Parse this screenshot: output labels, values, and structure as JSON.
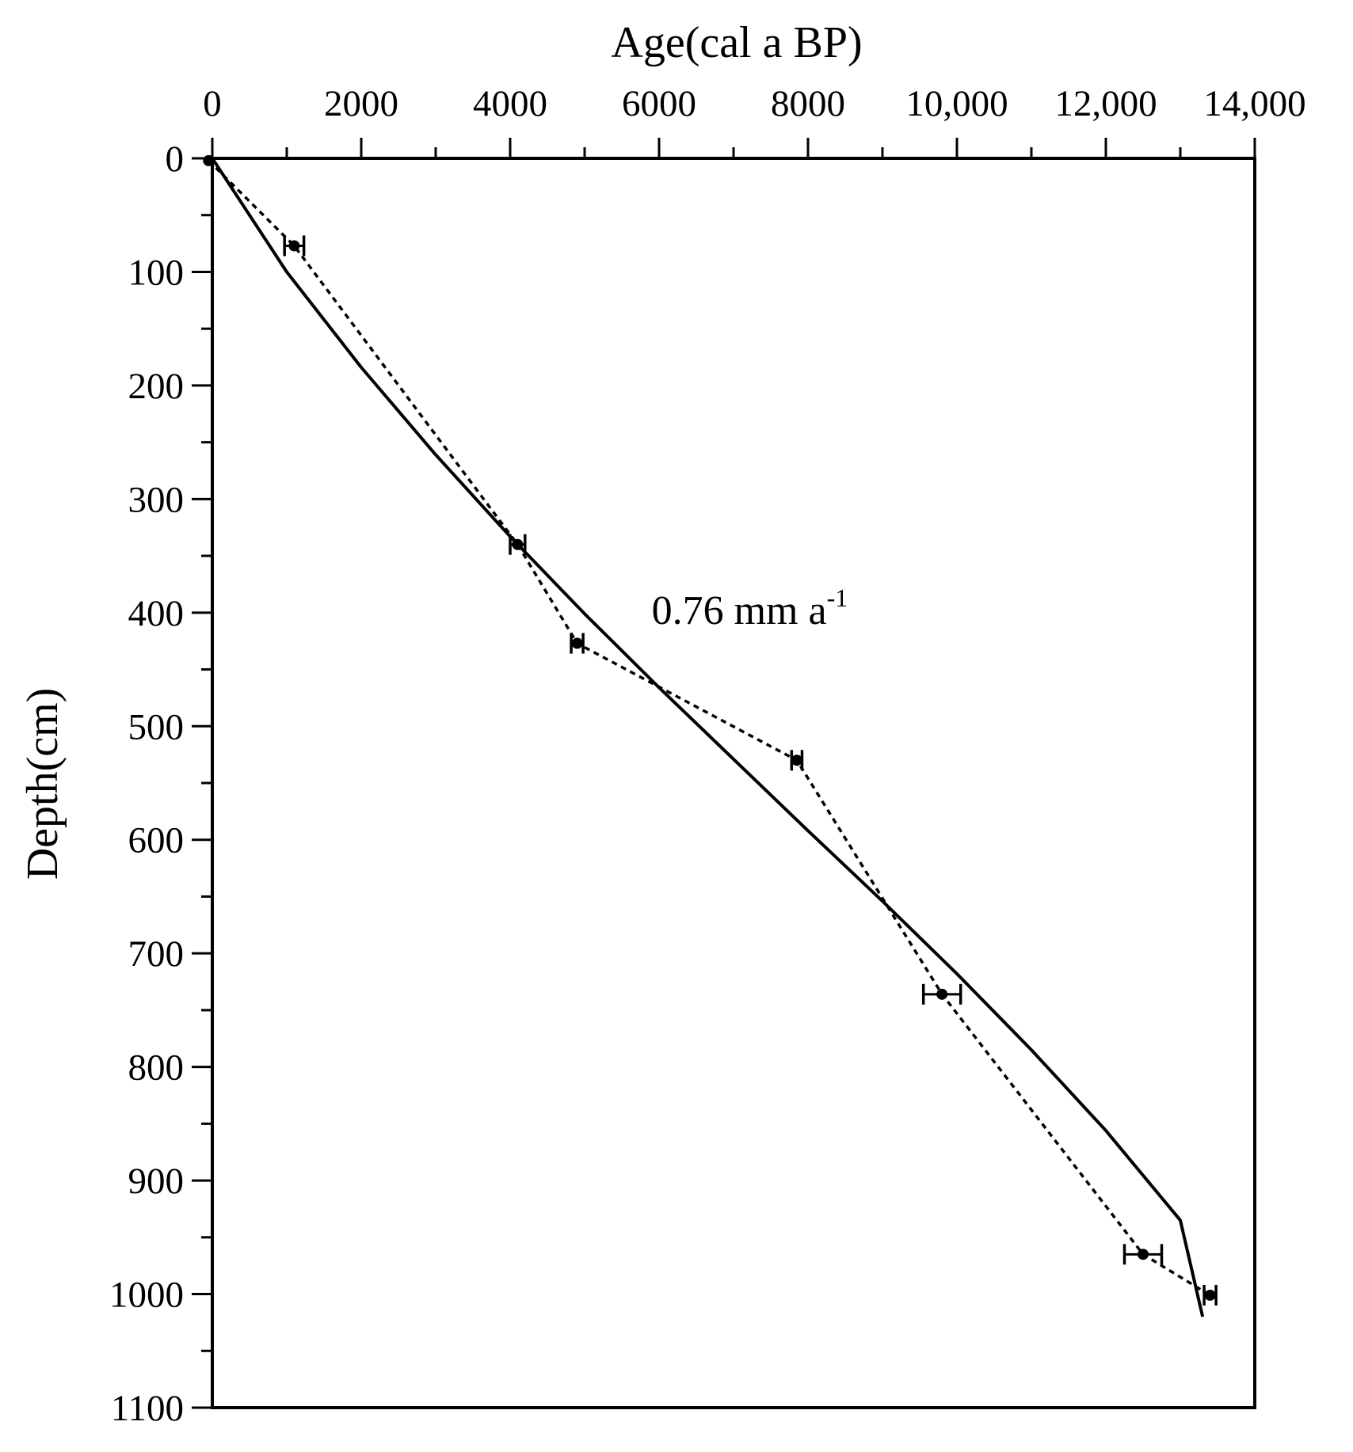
{
  "chart_data": {
    "type": "scatter",
    "xlabel": "Age(cal a BP)",
    "ylabel": "Depth(cm)",
    "xlim": [
      0,
      14000
    ],
    "ylim": [
      0,
      1100
    ],
    "x_axis_position": "top",
    "y_axis_inverted": true,
    "xticks": [
      0,
      2000,
      4000,
      6000,
      8000,
      10000,
      12000,
      14000
    ],
    "xtick_labels": [
      "0",
      "2000",
      "4000",
      "6000",
      "8000",
      "10,000",
      "12,000",
      "14,000"
    ],
    "yticks": [
      0,
      100,
      200,
      300,
      400,
      500,
      600,
      700,
      800,
      900,
      1000,
      1100
    ],
    "ytick_labels": [
      "0",
      "100",
      "200",
      "300",
      "400",
      "500",
      "600",
      "700",
      "800",
      "900",
      "1000",
      "1100"
    ],
    "grid": false,
    "points": [
      {
        "age": -50,
        "depth": 2,
        "err_low": 0,
        "err_high": 0
      },
      {
        "age": 1100,
        "depth": 77,
        "err_low": 130,
        "err_high": 130
      },
      {
        "age": 4100,
        "depth": 340,
        "err_low": 100,
        "err_high": 100
      },
      {
        "age": 4900,
        "depth": 427,
        "err_low": 80,
        "err_high": 80
      },
      {
        "age": 7850,
        "depth": 530,
        "err_low": 70,
        "err_high": 70
      },
      {
        "age": 9800,
        "depth": 736,
        "err_low": 250,
        "err_high": 250
      },
      {
        "age": 12500,
        "depth": 965,
        "err_low": 250,
        "err_high": 250
      },
      {
        "age": 13400,
        "depth": 1001,
        "err_low": 80,
        "err_high": 80
      }
    ],
    "fit_curve": {
      "style": "solid",
      "points": [
        [
          0,
          0
        ],
        [
          1000,
          100
        ],
        [
          2000,
          184
        ],
        [
          3000,
          261
        ],
        [
          4000,
          333
        ],
        [
          5000,
          401
        ],
        [
          6000,
          466
        ],
        [
          7000,
          529
        ],
        [
          8000,
          592
        ],
        [
          9000,
          654
        ],
        [
          10000,
          718
        ],
        [
          11000,
          785
        ],
        [
          12000,
          856
        ],
        [
          13000,
          935
        ],
        [
          13300,
          1020
        ]
      ]
    },
    "connecting_line": {
      "style": "dashed"
    },
    "annotation": {
      "text": "0.76 mm a",
      "superscript": "-1",
      "age": 5900,
      "depth": 410
    }
  }
}
